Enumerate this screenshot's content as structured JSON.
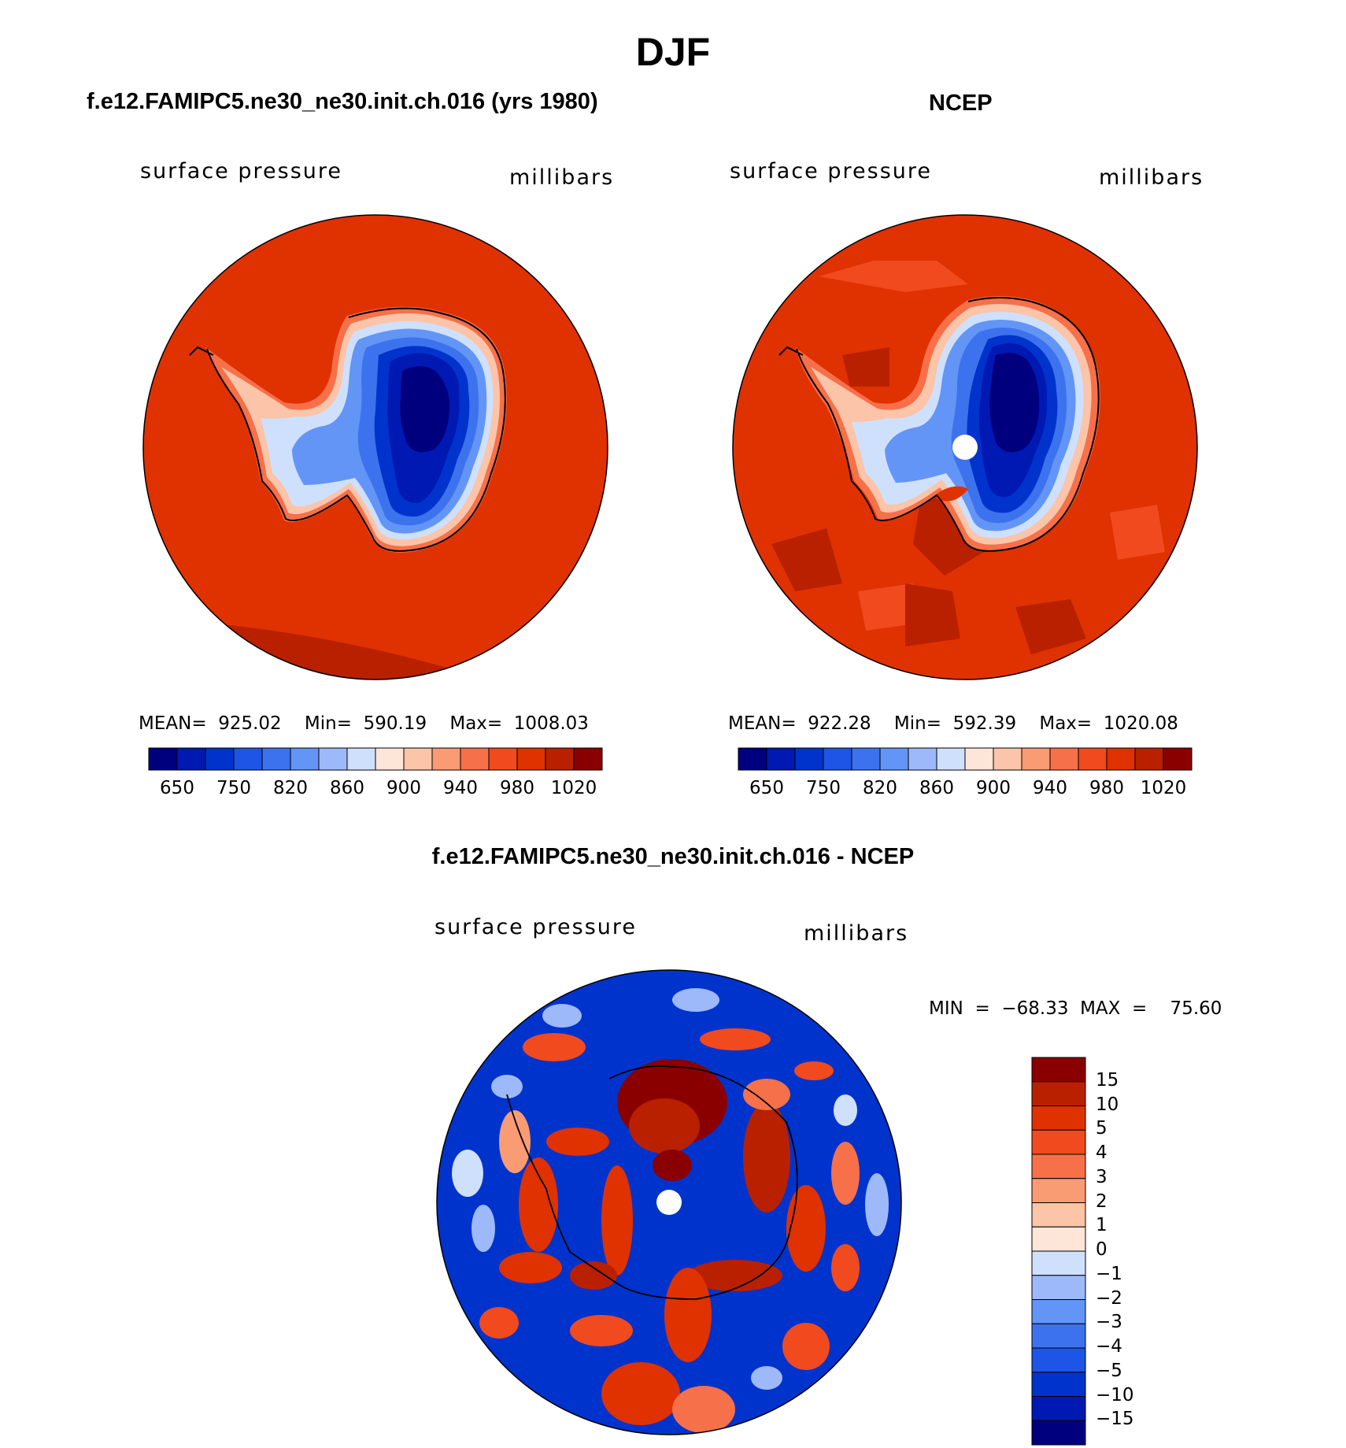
{
  "page_title": "DJF",
  "panels": {
    "model": {
      "heading": "f.e12.FAMIPC5.ne30_ne30.init.ch.016 (yrs 1980)",
      "left_label": "surface pressure",
      "right_label": "millibars",
      "stats": "MEAN=  925.02    Min=  590.19    Max=  1008.03"
    },
    "obs": {
      "heading": "NCEP",
      "left_label": "surface pressure",
      "right_label": "millibars",
      "stats": "MEAN=  922.28    Min=  592.39    Max=  1020.08"
    },
    "diff": {
      "heading": "f.e12.FAMIPC5.ne30_ne30.init.ch.016 - NCEP",
      "left_label": "surface pressure",
      "right_label": "millibars",
      "stats": "MIN  =  −68.33  MAX  =    75.60"
    }
  },
  "colors": {
    "abs_scale": [
      "#00007f",
      "#0019b2",
      "#0033cc",
      "#1f55e6",
      "#3d72ee",
      "#6395f6",
      "#9db9fa",
      "#cfe0fc",
      "#fde6d8",
      "#fcc4a8",
      "#f99b73",
      "#f6704a",
      "#f04a1e",
      "#e03100",
      "#b82000",
      "#8a0000"
    ],
    "diff_scale": [
      "#00007f",
      "#0019b2",
      "#0033cc",
      "#1f55e6",
      "#3d72ee",
      "#6395f6",
      "#9db9fa",
      "#cfe0fc",
      "#fde6d8",
      "#fcc4a8",
      "#f99b73",
      "#f6704a",
      "#f04a1e",
      "#e03100",
      "#b82000",
      "#8a0000"
    ],
    "ocean_red": "#e03100"
  },
  "chart_data": [
    {
      "type": "heatmap",
      "title": "f.e12.FAMIPC5.ne30_ne30.init.ch.016 (yrs 1980)",
      "projection": "south polar stereographic",
      "variable": "surface pressure",
      "units": "millibars",
      "mean": 925.02,
      "min": 590.19,
      "max": 1008.03,
      "colorbar_labels": [
        "650",
        "750",
        "820",
        "860",
        "900",
        "940",
        "980",
        "1020"
      ]
    },
    {
      "type": "heatmap",
      "title": "NCEP",
      "projection": "south polar stereographic",
      "variable": "surface pressure",
      "units": "millibars",
      "mean": 922.28,
      "min": 592.39,
      "max": 1020.08,
      "colorbar_labels": [
        "650",
        "750",
        "820",
        "860",
        "900",
        "940",
        "980",
        "1020"
      ]
    },
    {
      "type": "heatmap",
      "title": "f.e12.FAMIPC5.ne30_ne30.init.ch.016 - NCEP",
      "projection": "south polar stereographic",
      "variable": "surface pressure",
      "units": "millibars",
      "min": -68.33,
      "max": 75.6,
      "colorbar_labels": [
        "15",
        "10",
        "5",
        "4",
        "3",
        "2",
        "1",
        "0",
        "−1",
        "−2",
        "−3",
        "−4",
        "−5",
        "−10",
        "−15"
      ]
    }
  ]
}
